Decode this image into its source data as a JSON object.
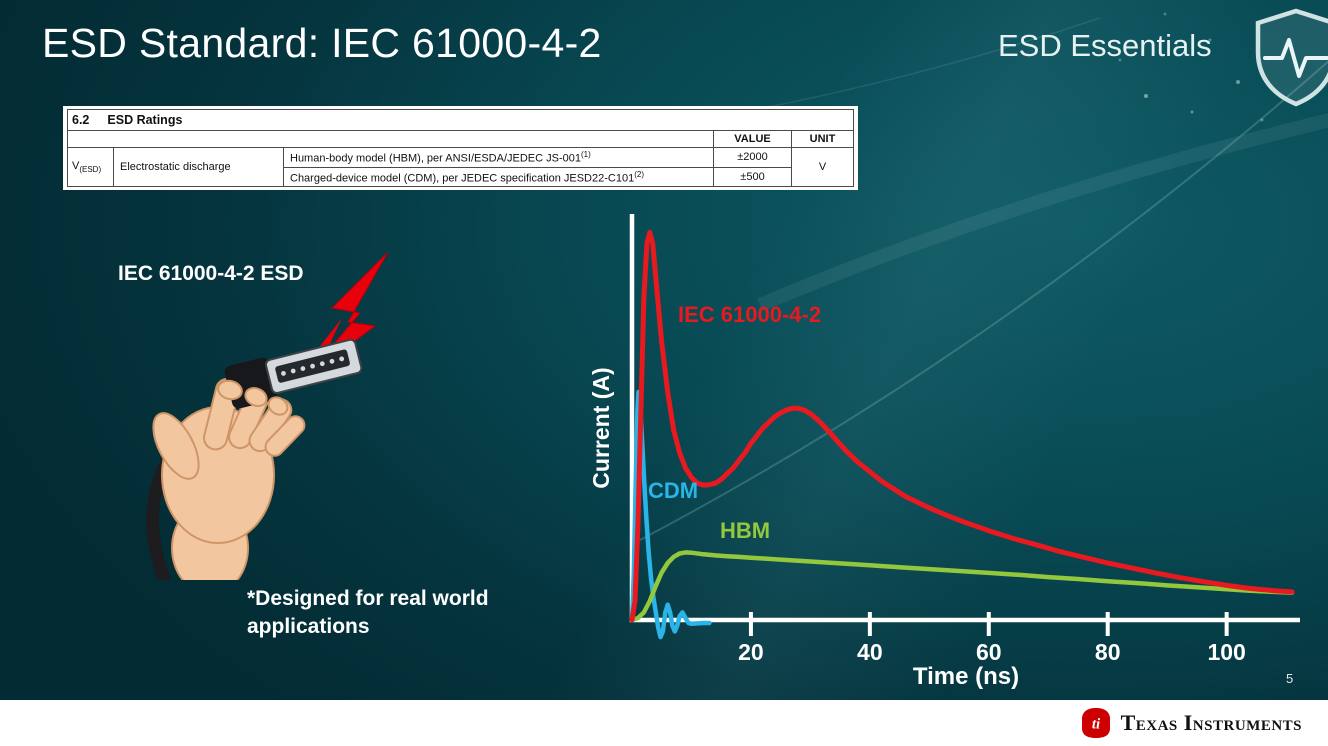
{
  "slide": {
    "title": "ESD Standard: IEC 61000-4-2",
    "brand": "ESD Essentials",
    "page_number": "5",
    "footer_brand": "Texas Instruments"
  },
  "ratings_table": {
    "section_number": "6.2",
    "section_title": "ESD Ratings",
    "headers": {
      "value": "VALUE",
      "unit": "UNIT"
    },
    "symbol": "V",
    "symbol_sub": "(ESD)",
    "parameter": "Electrostatic discharge",
    "rows": [
      {
        "description": "Human-body model (HBM), per ANSI/ESDA/JEDEC JS-001",
        "footnote_ref": "(1)",
        "value": "±2000"
      },
      {
        "description": "Charged-device model (CDM), per JEDEC specification JESD22-C101",
        "footnote_ref": "(2)",
        "value": "±500"
      }
    ],
    "unit": "V"
  },
  "illustration": {
    "label": "IEC 61000-4-2 ESD",
    "footnote": "*Designed for real world applications"
  },
  "chart_data": {
    "type": "line",
    "title": "",
    "xlabel": "Time (ns)",
    "ylabel": "Current (A)",
    "xlim": [
      0,
      112
    ],
    "ylim": [
      -0.06,
      1.05
    ],
    "x_ticks": [
      20,
      40,
      60,
      80,
      100
    ],
    "grid": false,
    "legend_position": "inline-labels",
    "series": [
      {
        "name": "IEC 61000-4-2",
        "color": "#e8191f",
        "width": 5,
        "points": [
          [
            0,
            0
          ],
          [
            0.5,
            0.05
          ],
          [
            1,
            0.25
          ],
          [
            1.5,
            0.55
          ],
          [
            2,
            0.85
          ],
          [
            2.5,
            0.99
          ],
          [
            3,
            1.02
          ],
          [
            3.5,
            0.99
          ],
          [
            4,
            0.9
          ],
          [
            5,
            0.73
          ],
          [
            6,
            0.6
          ],
          [
            7,
            0.5
          ],
          [
            8,
            0.44
          ],
          [
            9,
            0.4
          ],
          [
            10,
            0.375
          ],
          [
            11,
            0.36
          ],
          [
            12,
            0.355
          ],
          [
            13,
            0.356
          ],
          [
            14,
            0.36
          ],
          [
            15,
            0.37
          ],
          [
            16,
            0.385
          ],
          [
            17,
            0.4
          ],
          [
            18,
            0.42
          ],
          [
            19,
            0.44
          ],
          [
            20,
            0.465
          ],
          [
            21,
            0.485
          ],
          [
            22,
            0.505
          ],
          [
            23,
            0.52
          ],
          [
            24,
            0.535
          ],
          [
            25,
            0.545
          ],
          [
            26,
            0.553
          ],
          [
            27,
            0.557
          ],
          [
            28,
            0.557
          ],
          [
            29,
            0.552
          ],
          [
            30,
            0.543
          ],
          [
            31,
            0.53
          ],
          [
            32,
            0.515
          ],
          [
            34,
            0.48
          ],
          [
            36,
            0.445
          ],
          [
            38,
            0.415
          ],
          [
            40,
            0.39
          ],
          [
            42,
            0.365
          ],
          [
            44,
            0.345
          ],
          [
            46,
            0.325
          ],
          [
            48,
            0.31
          ],
          [
            50,
            0.295
          ],
          [
            53,
            0.275
          ],
          [
            56,
            0.257
          ],
          [
            60,
            0.235
          ],
          [
            64,
            0.215
          ],
          [
            68,
            0.198
          ],
          [
            72,
            0.18
          ],
          [
            76,
            0.165
          ],
          [
            80,
            0.15
          ],
          [
            84,
            0.137
          ],
          [
            88,
            0.124
          ],
          [
            92,
            0.112
          ],
          [
            96,
            0.101
          ],
          [
            100,
            0.091
          ],
          [
            104,
            0.083
          ],
          [
            108,
            0.077
          ],
          [
            111,
            0.074
          ]
        ]
      },
      {
        "name": "CDM",
        "color": "#2ab4e8",
        "width": 4.5,
        "points": [
          [
            0,
            0
          ],
          [
            0.3,
            0.12
          ],
          [
            0.6,
            0.35
          ],
          [
            0.9,
            0.55
          ],
          [
            1.1,
            0.6
          ],
          [
            1.3,
            0.58
          ],
          [
            1.6,
            0.5
          ],
          [
            2,
            0.38
          ],
          [
            2.4,
            0.27
          ],
          [
            2.8,
            0.18
          ],
          [
            3.2,
            0.11
          ],
          [
            3.6,
            0.06
          ],
          [
            4,
            0.02
          ],
          [
            4.4,
            -0.02
          ],
          [
            4.8,
            -0.045
          ],
          [
            5.2,
            -0.03
          ],
          [
            5.6,
            0.02
          ],
          [
            6,
            0.04
          ],
          [
            6.4,
            0.02
          ],
          [
            6.8,
            -0.015
          ],
          [
            7.2,
            -0.03
          ],
          [
            7.6,
            -0.015
          ],
          [
            8,
            0.01
          ],
          [
            8.5,
            0.02
          ],
          [
            9,
            0.005
          ],
          [
            9.5,
            -0.008
          ],
          [
            10,
            -0.01
          ],
          [
            11,
            -0.009
          ],
          [
            12,
            -0.008
          ],
          [
            13,
            -0.008
          ]
        ]
      },
      {
        "name": "HBM",
        "color": "#93c83d",
        "width": 4.5,
        "points": [
          [
            0,
            0
          ],
          [
            1,
            0.005
          ],
          [
            2,
            0.02
          ],
          [
            3,
            0.05
          ],
          [
            4,
            0.09
          ],
          [
            5,
            0.125
          ],
          [
            6,
            0.15
          ],
          [
            7,
            0.166
          ],
          [
            8,
            0.175
          ],
          [
            9,
            0.178
          ],
          [
            10,
            0.177
          ],
          [
            12,
            0.173
          ],
          [
            14,
            0.17
          ],
          [
            16,
            0.168
          ],
          [
            18,
            0.166
          ],
          [
            20,
            0.164
          ],
          [
            24,
            0.16
          ],
          [
            28,
            0.156
          ],
          [
            32,
            0.152
          ],
          [
            36,
            0.148
          ],
          [
            40,
            0.144
          ],
          [
            45,
            0.139
          ],
          [
            50,
            0.134
          ],
          [
            55,
            0.129
          ],
          [
            60,
            0.124
          ],
          [
            65,
            0.119
          ],
          [
            70,
            0.113
          ],
          [
            75,
            0.108
          ],
          [
            80,
            0.102
          ],
          [
            85,
            0.097
          ],
          [
            90,
            0.091
          ],
          [
            95,
            0.086
          ],
          [
            100,
            0.081
          ],
          [
            104,
            0.077
          ],
          [
            108,
            0.074
          ],
          [
            111,
            0.072
          ]
        ]
      }
    ]
  }
}
